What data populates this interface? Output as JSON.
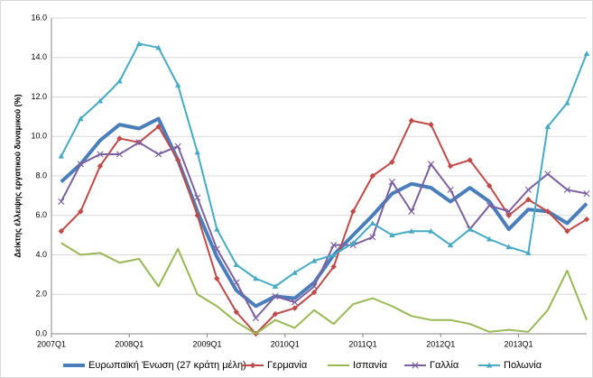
{
  "chart_data": {
    "type": "line",
    "ylabel": "Δείκτης έλλειψης εργατικού δυναμικού (%)",
    "categories": [
      "2007Q1",
      null,
      null,
      null,
      "2008Q1",
      null,
      null,
      null,
      "2009Q1",
      null,
      null,
      null,
      "2010Q1",
      null,
      null,
      null,
      "2011Q1",
      null,
      null,
      null,
      "2012Q1",
      null,
      null,
      null,
      "2013Q1",
      null,
      null,
      null
    ],
    "ylim": [
      0,
      16
    ],
    "yticks": [
      {
        "value": 0,
        "label": "0.0"
      },
      {
        "value": 2,
        "label": "2.0"
      },
      {
        "value": 4,
        "label": "4.0"
      },
      {
        "value": 6,
        "label": "6.0"
      },
      {
        "value": 8,
        "label": "8.0"
      },
      {
        "value": 10,
        "label": "10.0"
      },
      {
        "value": 12,
        "label": "12.0"
      },
      {
        "value": 14,
        "label": "14.0"
      },
      {
        "value": 16,
        "label": "16.0"
      }
    ],
    "grid": true,
    "legend": "bottom",
    "series": [
      {
        "name": "Ευρωπαϊκή Ένωση (27 κράτη μέλη)",
        "color": "#4a7ebb",
        "line_width": 4,
        "values": [
          7.7,
          8.6,
          9.8,
          10.6,
          10.4,
          10.9,
          8.8,
          6.2,
          3.9,
          2.2,
          1.4,
          1.9,
          1.8,
          2.6,
          4.0,
          5.0,
          6.0,
          7.1,
          7.6,
          7.4,
          6.7,
          7.4,
          6.7,
          5.3,
          6.3,
          6.2,
          5.6,
          6.6
        ]
      },
      {
        "name": "Γερμανία",
        "color": "#be4b48",
        "line_width": 2,
        "marker": "diamond",
        "values": [
          5.2,
          6.2,
          8.5,
          9.9,
          9.7,
          10.5,
          8.8,
          6.0,
          2.8,
          1.1,
          0.0,
          1.0,
          1.3,
          2.1,
          3.4,
          6.2,
          8.0,
          8.7,
          10.8,
          10.6,
          8.5,
          8.8,
          7.5,
          6.0,
          6.8,
          6.2,
          5.2,
          5.8
        ]
      },
      {
        "name": "Ισπανία",
        "color": "#98b954",
        "line_width": 2,
        "values": [
          4.6,
          4.0,
          4.1,
          3.6,
          3.8,
          2.4,
          4.3,
          2.0,
          1.4,
          0.6,
          0.0,
          0.7,
          0.3,
          1.2,
          0.5,
          1.5,
          1.8,
          1.4,
          0.9,
          0.7,
          0.7,
          0.5,
          0.1,
          0.2,
          0.1,
          1.2,
          3.2,
          0.7
        ]
      },
      {
        "name": "Γαλλία",
        "color": "#7d60a0",
        "line_width": 2,
        "marker": "cross",
        "values": [
          6.7,
          8.6,
          9.1,
          9.1,
          9.7,
          9.1,
          9.5,
          6.9,
          4.3,
          2.6,
          0.8,
          1.9,
          1.6,
          2.4,
          4.5,
          4.5,
          4.9,
          7.7,
          6.2,
          8.6,
          7.3,
          5.3,
          6.5,
          6.2,
          7.3,
          8.1,
          7.3,
          7.1
        ]
      },
      {
        "name": "Πολωνία",
        "color": "#46aac5",
        "line_width": 2,
        "marker": "triangle",
        "values": [
          9.0,
          10.9,
          11.8,
          12.8,
          14.7,
          14.5,
          12.6,
          9.2,
          5.3,
          3.5,
          2.8,
          2.4,
          3.1,
          3.7,
          4.0,
          4.6,
          5.6,
          5.0,
          5.2,
          5.2,
          4.5,
          5.3,
          4.8,
          4.4,
          4.1,
          10.5,
          11.7,
          14.2
        ]
      }
    ]
  }
}
